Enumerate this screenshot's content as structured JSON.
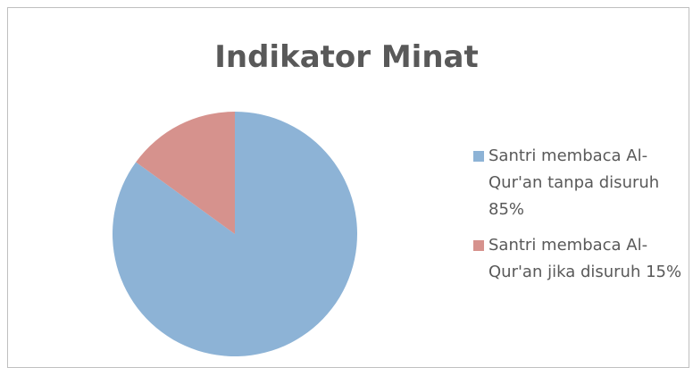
{
  "chart_data": {
    "type": "pie",
    "title": "Indikator Minat",
    "categories": [
      "Santri membaca Al-Qur'an tanpa disuruh 85%",
      "Santri membaca Al-Qur'an jika disuruh 15%"
    ],
    "values": [
      85,
      15
    ],
    "colors": [
      "#8db3d6",
      "#d6928d"
    ],
    "legend": "right"
  }
}
